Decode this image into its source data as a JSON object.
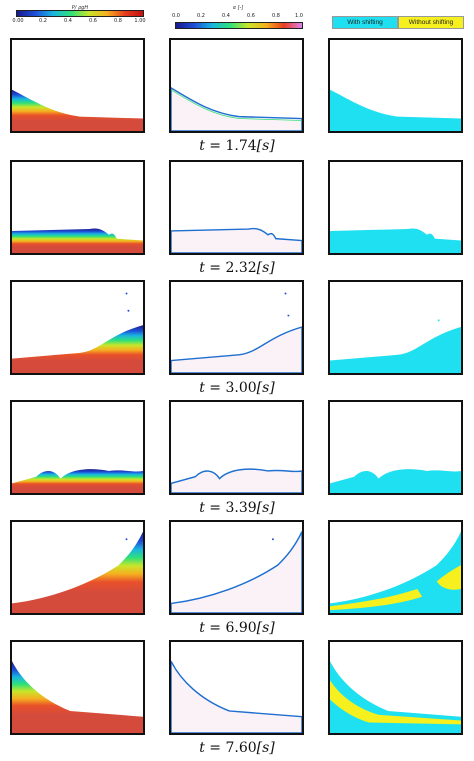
{
  "colorbar_left": {
    "title": "P/ ρgH",
    "ticks": [
      "0.00",
      "0.2",
      "0.4",
      "0.6",
      "0.8",
      "1.00"
    ]
  },
  "colorbar_mid": {
    "title": "α [-]",
    "ticks": [
      "0.0",
      "0.2",
      "0.4",
      "0.6",
      "0.8",
      "1.0"
    ]
  },
  "legend": {
    "with_label": "With shifting",
    "without_label": "Without shifting",
    "with_color": "#1ee0f0",
    "without_color": "#f5f01e"
  },
  "rows": [
    {
      "t_prefix": "t = ",
      "value": "1.74",
      "unit": "[s]"
    },
    {
      "t_prefix": "t = ",
      "value": "2.32",
      "unit": "[s]"
    },
    {
      "t_prefix": "t = ",
      "value": "3.00",
      "unit": "[s]"
    },
    {
      "t_prefix": "t = ",
      "value": "3.39",
      "unit": "[s]"
    },
    {
      "t_prefix": "t = ",
      "value": "6.90",
      "unit": "[s]"
    },
    {
      "t_prefix": "t = ",
      "value": "7.60",
      "unit": "[s]"
    }
  ]
}
